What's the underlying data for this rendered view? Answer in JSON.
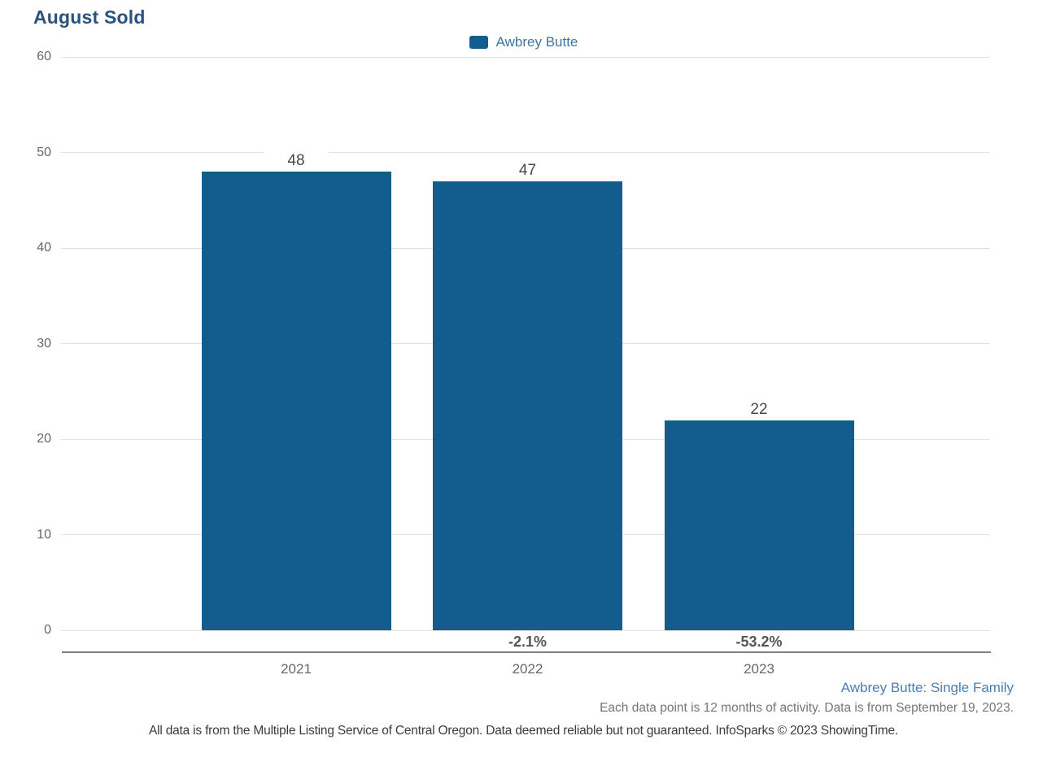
{
  "title": "August Sold",
  "legend": {
    "label": "Awbrey Butte"
  },
  "chart_data": {
    "type": "bar",
    "title": "August Sold",
    "series": [
      {
        "name": "Awbrey Butte",
        "values": [
          48,
          47,
          22
        ]
      }
    ],
    "categories": [
      "2021",
      "2022",
      "2023"
    ],
    "value_labels": [
      "48",
      "47",
      "22"
    ],
    "pct_change_labels": [
      "",
      "-2.1%",
      "-53.2%"
    ],
    "yticks": [
      0,
      10,
      20,
      30,
      40,
      50,
      60
    ],
    "ylim": [
      0,
      60
    ],
    "xlabel": "",
    "ylabel": "",
    "grid": "horizontal",
    "legend_position": "top-center"
  },
  "footer": {
    "series_context": "Awbrey Butte: Single Family",
    "data_note": "Each data point is 12 months of activity. Data is from September 19, 2023.",
    "disclaimer": "All data is from the Multiple Listing Service of Central Oregon. Data deemed reliable but not guaranteed. InfoSparks © 2023 ShowingTime."
  },
  "colors": {
    "bar": "#135c8e",
    "title": "#2a527c",
    "legend_label": "#40739f",
    "series_context": "#4d7dae",
    "grid_line": "#e1e1e1",
    "axis_line": "#808080",
    "tick_label": "#666666",
    "value_label": "#484848",
    "pct_label": "#555555",
    "data_note": "#757575",
    "disclaimer": "#3c3c3c"
  }
}
